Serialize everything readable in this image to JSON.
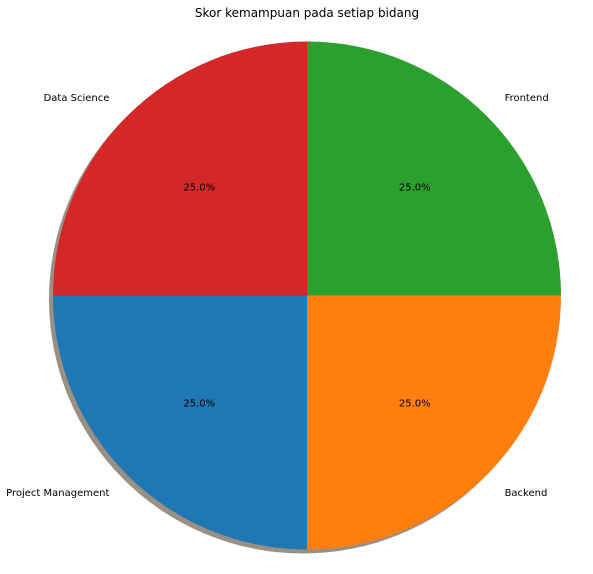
{
  "chart_data": {
    "type": "pie",
    "title": "Skor kemampuan pada setiap bidang",
    "categories": [
      "Data Science",
      "Project Management",
      "Backend",
      "Frontend"
    ],
    "values": [
      25,
      25,
      25,
      25
    ],
    "percent_labels": [
      "25.0%",
      "25.0%",
      "25.0%",
      "25.0%"
    ],
    "colors": [
      "#d62728",
      "#1f77b4",
      "#ff7f0e",
      "#2ca02c"
    ],
    "start_angle_deg": 90,
    "direction": "counterclockwise",
    "shadow": true,
    "legend": "none"
  }
}
